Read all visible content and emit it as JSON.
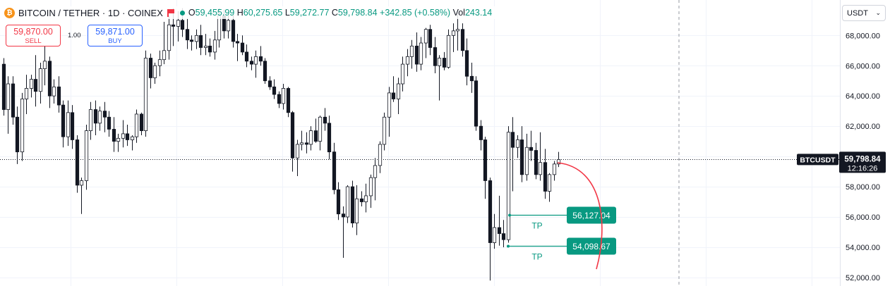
{
  "header": {
    "coin_glyph": "₿",
    "symbol": "BITCOIN / TETHER · 1D · COINEX",
    "open_label": "O",
    "open_value": "59,455.99",
    "high_label": "H",
    "high_value": "60,275.65",
    "low_label": "L",
    "low_value": "59,272.77",
    "close_label": "C",
    "close_value": "59,798.84",
    "change": "+342.85 (+0.58%)",
    "volume_label": "Vol",
    "volume_value": "243.14"
  },
  "trade": {
    "sell_price": "59,870.00",
    "sell_label": "SELL",
    "spread": "1.00",
    "buy_price": "59,871.00",
    "buy_label": "BUY"
  },
  "currency_select": {
    "value": "USDT"
  },
  "colors": {
    "up": "#089981",
    "down": "#f23645",
    "candle_down": "#131722",
    "candle_up_fill": "#ffffff",
    "tp": "#089981",
    "curve": "#f23645"
  },
  "chart_data": {
    "type": "candlestick",
    "y_ticks": [
      "68,000.00",
      "66,000.00",
      "64,000.00",
      "62,000.00",
      "60,000.00",
      "58,000.00",
      "56,000.00",
      "54,000.00",
      "52,000.00"
    ],
    "ylim": [
      51900,
      69800
    ],
    "current_price": {
      "symbol": "BTCUSDT",
      "value": "59,798.84",
      "countdown": "12:16:26",
      "price": 59798.84
    },
    "take_profits": [
      {
        "label": "TP",
        "value": "56,127.04",
        "price": 56127.04
      },
      {
        "label": "TP",
        "value": "54,098.67",
        "price": 54098.67
      }
    ],
    "grid": true,
    "candles": [
      [
        66100,
        66500,
        62700,
        63100
      ],
      [
        63100,
        65300,
        61500,
        64800
      ],
      [
        64800,
        65300,
        62100,
        62600
      ],
      [
        62600,
        63300,
        59500,
        60300
      ],
      [
        60300,
        64200,
        59700,
        63800
      ],
      [
        63800,
        65400,
        62800,
        64500
      ],
      [
        64500,
        65400,
        63900,
        65100
      ],
      [
        65100,
        66700,
        63300,
        64300
      ],
      [
        64300,
        66200,
        63500,
        65800
      ],
      [
        65800,
        68100,
        64700,
        66300
      ],
      [
        66300,
        66600,
        63200,
        64000
      ],
      [
        64000,
        65100,
        63500,
        64600
      ],
      [
        64600,
        65300,
        62900,
        63400
      ],
      [
        63400,
        63700,
        60600,
        61300
      ],
      [
        61300,
        63700,
        60700,
        62900
      ],
      [
        62900,
        63400,
        60500,
        61100
      ],
      [
        61100,
        61400,
        57600,
        58100
      ],
      [
        58100,
        58600,
        56200,
        58400
      ],
      [
        58400,
        62100,
        57800,
        61700
      ],
      [
        61700,
        63600,
        61100,
        63100
      ],
      [
        63100,
        63700,
        61400,
        62200
      ],
      [
        62200,
        63300,
        61700,
        63000
      ],
      [
        63000,
        63600,
        61600,
        62600
      ],
      [
        62600,
        63000,
        61300,
        61800
      ],
      [
        61800,
        62600,
        60300,
        61000
      ],
      [
        61000,
        61500,
        60300,
        61200
      ],
      [
        61200,
        62400,
        60600,
        61500
      ],
      [
        61500,
        62100,
        60700,
        61100
      ],
      [
        61100,
        61400,
        60400,
        61300
      ],
      [
        61300,
        63100,
        60900,
        62800
      ],
      [
        62800,
        62900,
        61400,
        61700
      ],
      [
        61700,
        67000,
        61300,
        66500
      ],
      [
        66500,
        66800,
        64500,
        65200
      ],
      [
        65200,
        66200,
        64800,
        66000
      ],
      [
        66000,
        67000,
        65300,
        66400
      ],
      [
        66400,
        68900,
        66100,
        67000
      ],
      [
        67000,
        69300,
        66400,
        68700
      ],
      [
        68700,
        69800,
        67300,
        68600
      ],
      [
        68600,
        69600,
        67600,
        69000
      ],
      [
        69000,
        69800,
        67900,
        68400
      ],
      [
        68400,
        69100,
        67100,
        67700
      ],
      [
        67700,
        68000,
        67000,
        67600
      ],
      [
        67600,
        68400,
        67100,
        68000
      ],
      [
        68000,
        68700,
        66700,
        67200
      ],
      [
        67200,
        68100,
        66700,
        67300
      ],
      [
        67300,
        67800,
        66600,
        66900
      ],
      [
        66900,
        68300,
        66400,
        67700
      ],
      [
        67700,
        69800,
        67200,
        69300
      ],
      [
        69300,
        69700,
        67800,
        68300
      ],
      [
        68300,
        69500,
        67800,
        69000
      ],
      [
        69000,
        69400,
        67200,
        67600
      ],
      [
        67600,
        68100,
        66300,
        67500
      ],
      [
        67500,
        68000,
        66700,
        66900
      ],
      [
        66900,
        67400,
        65900,
        66300
      ],
      [
        66300,
        66600,
        65700,
        66100
      ],
      [
        66100,
        67000,
        65200,
        66600
      ],
      [
        66600,
        67300,
        66000,
        66300
      ],
      [
        66300,
        66500,
        64800,
        65000
      ],
      [
        65000,
        65300,
        64400,
        64600
      ],
      [
        64600,
        65100,
        63800,
        64100
      ],
      [
        64100,
        64300,
        63200,
        63500
      ],
      [
        63500,
        64800,
        63100,
        64500
      ],
      [
        64500,
        64600,
        62600,
        62900
      ],
      [
        62900,
        63000,
        59000,
        59900
      ],
      [
        59900,
        61100,
        58700,
        60800
      ],
      [
        60800,
        61700,
        60400,
        60900
      ],
      [
        60900,
        61600,
        60200,
        60800
      ],
      [
        60800,
        62000,
        60400,
        61700
      ],
      [
        61700,
        62500,
        60900,
        61000
      ],
      [
        61000,
        62700,
        60400,
        62600
      ],
      [
        62600,
        63200,
        61700,
        62200
      ],
      [
        62200,
        62700,
        59800,
        60300
      ],
      [
        60300,
        60900,
        57500,
        57800
      ],
      [
        57800,
        58300,
        55800,
        56200
      ],
      [
        56200,
        56700,
        53300,
        56000
      ],
      [
        56000,
        58100,
        55600,
        58000
      ],
      [
        58000,
        58400,
        55300,
        55600
      ],
      [
        55600,
        58100,
        54800,
        57200
      ],
      [
        57200,
        57700,
        56700,
        57000
      ],
      [
        57000,
        58200,
        56300,
        57400
      ],
      [
        57400,
        58800,
        56600,
        58600
      ],
      [
        58600,
        59900,
        57100,
        59400
      ],
      [
        59400,
        61000,
        58900,
        60800
      ],
      [
        60800,
        62900,
        60400,
        62600
      ],
      [
        62600,
        64600,
        61300,
        64200
      ],
      [
        64200,
        65300,
        63600,
        63800
      ],
      [
        63800,
        65200,
        62800,
        64800
      ],
      [
        64800,
        66600,
        64300,
        66100
      ],
      [
        66100,
        67100,
        65300,
        66600
      ],
      [
        66600,
        67700,
        65800,
        67300
      ],
      [
        67300,
        68200,
        65600,
        66100
      ],
      [
        66100,
        67900,
        65700,
        67500
      ],
      [
        67500,
        68500,
        66500,
        68400
      ],
      [
        68400,
        68700,
        66700,
        67200
      ],
      [
        67200,
        67900,
        65500,
        66000
      ],
      [
        66000,
        66700,
        63700,
        66500
      ],
      [
        66500,
        66900,
        65700,
        65900
      ],
      [
        65900,
        68400,
        65800,
        68000
      ],
      [
        68000,
        68800,
        66900,
        68300
      ],
      [
        68300,
        69500,
        67000,
        68400
      ],
      [
        68400,
        68800,
        66600,
        67000
      ],
      [
        67000,
        67800,
        64700,
        65300
      ],
      [
        65300,
        66200,
        64200,
        65000
      ],
      [
        65000,
        65300,
        61700,
        62000
      ],
      [
        62000,
        62400,
        60400,
        61100
      ],
      [
        61100,
        61300,
        57200,
        58400
      ],
      [
        58400,
        58600,
        51800,
        54300
      ],
      [
        54300,
        56200,
        53900,
        55300
      ],
      [
        55300,
        57400,
        54100,
        54900
      ],
      [
        54900,
        55800,
        54000,
        54500
      ],
      [
        54500,
        62000,
        54300,
        61600
      ],
      [
        61600,
        62600,
        57700,
        60600
      ],
      [
        60600,
        61400,
        59900,
        61100
      ],
      [
        61100,
        62000,
        58300,
        58800
      ],
      [
        58800,
        61500,
        58400,
        60600
      ],
      [
        60600,
        61700,
        59700,
        60400
      ],
      [
        60400,
        60900,
        58500,
        58800
      ],
      [
        58800,
        61600,
        58400,
        59600
      ],
      [
        59600,
        60500,
        57200,
        57700
      ],
      [
        57700,
        58900,
        57000,
        58800
      ],
      [
        58800,
        59700,
        58400,
        59500
      ],
      [
        59500,
        60300,
        59300,
        59799
      ]
    ]
  }
}
